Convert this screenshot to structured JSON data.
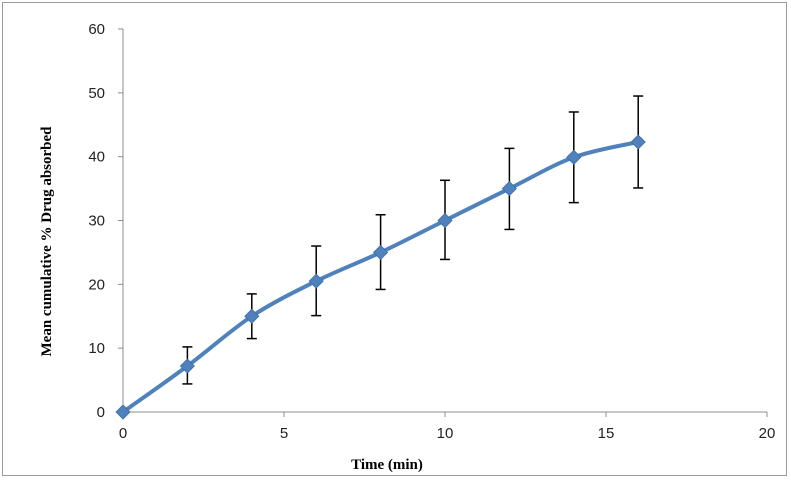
{
  "chart_data": {
    "type": "line",
    "title": "",
    "xlabel": "Time (min)",
    "ylabel": "Mean cumulative % Drug absorbed",
    "xlim": [
      0,
      20
    ],
    "ylim": [
      0,
      60
    ],
    "x_ticks": [
      0,
      5,
      10,
      15,
      20
    ],
    "y_ticks": [
      0,
      10,
      20,
      30,
      40,
      50,
      60
    ],
    "x_tick_labels": [
      "0",
      "5",
      "10",
      "15",
      "20"
    ],
    "y_tick_labels": [
      "0",
      "10",
      "20",
      "30",
      "40",
      "50",
      "60"
    ],
    "grid": false,
    "legend": "none",
    "smooth": true,
    "series": [
      {
        "x": [
          0,
          2,
          4,
          6,
          8,
          10,
          12,
          14,
          16
        ],
        "y": [
          0,
          7.2,
          15.0,
          20.5,
          25.0,
          30.0,
          35.0,
          39.9,
          42.3
        ],
        "error_low": [
          0,
          4.4,
          11.5,
          15.1,
          19.2,
          23.9,
          28.6,
          32.8,
          35.1
        ],
        "error_high": [
          0,
          10.2,
          18.5,
          26.0,
          30.9,
          36.3,
          41.3,
          47.0,
          49.5
        ],
        "color": "#4f81bd",
        "marker": "diamond"
      }
    ],
    "errorbar_color": "#000000"
  }
}
